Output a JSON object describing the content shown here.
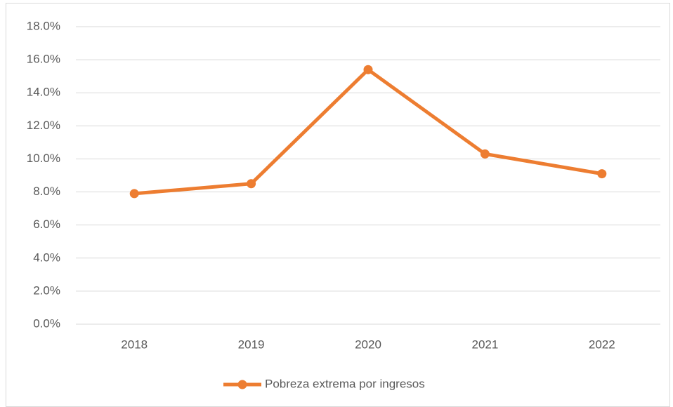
{
  "chart_data": {
    "type": "line",
    "categories": [
      "2018",
      "2019",
      "2020",
      "2021",
      "2022"
    ],
    "series": [
      {
        "name": "Pobreza extrema por ingresos",
        "color": "#ed7d31",
        "values": [
          7.9,
          8.5,
          15.4,
          10.3,
          9.1
        ]
      }
    ],
    "ylim": [
      0,
      18
    ],
    "yticks": [
      {
        "value": 0,
        "label": "0.0%"
      },
      {
        "value": 2,
        "label": "2.0%"
      },
      {
        "value": 4,
        "label": "4.0%"
      },
      {
        "value": 6,
        "label": "6.0%"
      },
      {
        "value": 8,
        "label": "8.0%"
      },
      {
        "value": 10,
        "label": "10.0%"
      },
      {
        "value": 12,
        "label": "12.0%"
      },
      {
        "value": 14,
        "label": "14.0%"
      },
      {
        "value": 16,
        "label": "16.0%"
      },
      {
        "value": 18,
        "label": "18.0%"
      }
    ],
    "grid": true,
    "legend": "bottom"
  }
}
